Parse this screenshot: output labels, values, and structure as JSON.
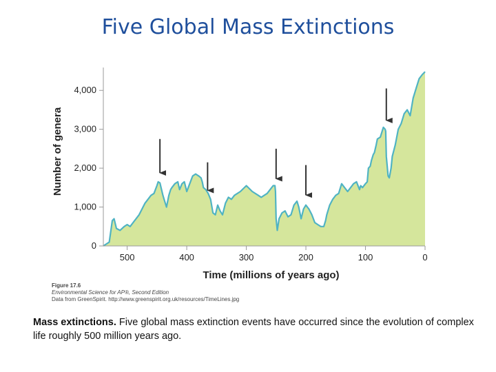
{
  "page_title": "Five Global Mass Extinctions",
  "figure_credit": {
    "number": "Figure 17.6",
    "source": "Environmental Science for AP®, Second Edition",
    "data_from": "Data from GreenSpirit. http://www.greenspirit.org.uk/resources/TimeLines.jpg"
  },
  "caption": {
    "heading": "Mass extinctions.",
    "text": " Five global mass extinction events have occurred since the evolution of complex life roughly 500 million years ago."
  },
  "colors": {
    "title": "#1f4f9c",
    "area_fill": "#d5e69c",
    "line": "#4fb3c3",
    "arrow": "#333333"
  },
  "chart_data": {
    "type": "area",
    "title": "",
    "xlabel": "Time (millions of years ago)",
    "ylabel": "Number of genera",
    "xlim": [
      540,
      0
    ],
    "ylim": [
      0,
      4500
    ],
    "x_reversed": true,
    "grid": false,
    "x_ticks": [
      500,
      400,
      300,
      200,
      100,
      0
    ],
    "x_tick_labels": [
      "500",
      "400",
      "300",
      "200",
      "100",
      "0"
    ],
    "y_ticks": [
      0,
      1000,
      2000,
      3000,
      4000
    ],
    "y_tick_labels": [
      "0",
      "1,000",
      "2,000",
      "3,000",
      "4,000"
    ],
    "x": [
      540,
      530,
      525,
      522,
      518,
      512,
      505,
      500,
      495,
      490,
      480,
      470,
      460,
      455,
      450,
      448,
      445,
      440,
      438,
      434,
      430,
      427,
      425,
      420,
      415,
      412,
      408,
      404,
      400,
      395,
      390,
      385,
      380,
      376,
      374,
      372,
      368,
      364,
      360,
      356,
      352,
      348,
      344,
      340,
      335,
      330,
      325,
      320,
      310,
      300,
      290,
      280,
      275,
      270,
      265,
      260,
      255,
      252,
      251,
      250,
      248,
      245,
      240,
      235,
      230,
      225,
      220,
      215,
      212,
      208,
      204,
      200,
      195,
      190,
      185,
      180,
      175,
      170,
      167,
      165,
      160,
      155,
      150,
      145,
      140,
      130,
      120,
      115,
      110,
      108,
      105,
      100,
      97,
      95,
      92,
      90,
      87,
      85,
      82,
      80,
      75,
      70,
      67,
      66,
      65,
      62,
      60,
      57,
      55,
      50,
      45,
      40,
      35,
      30,
      25,
      20,
      15,
      10,
      5,
      0
    ],
    "values": [
      0,
      100,
      650,
      700,
      450,
      400,
      500,
      550,
      500,
      600,
      800,
      1100,
      1300,
      1350,
      1550,
      1650,
      1620,
      1300,
      1200,
      1000,
      1300,
      1450,
      1500,
      1600,
      1650,
      1450,
      1600,
      1650,
      1400,
      1600,
      1800,
      1850,
      1800,
      1750,
      1650,
      1500,
      1450,
      1350,
      1200,
      850,
      800,
      1050,
      900,
      800,
      1100,
      1250,
      1200,
      1300,
      1400,
      1550,
      1400,
      1300,
      1250,
      1300,
      1350,
      1450,
      1550,
      1550,
      1400,
      700,
      400,
      700,
      850,
      900,
      750,
      800,
      1050,
      1150,
      1000,
      700,
      950,
      1050,
      950,
      800,
      600,
      550,
      500,
      500,
      650,
      800,
      1050,
      1200,
      1300,
      1350,
      1600,
      1400,
      1600,
      1650,
      1450,
      1550,
      1500,
      1600,
      1650,
      2000,
      2050,
      2200,
      2350,
      2400,
      2600,
      2750,
      2800,
      3050,
      3000,
      2950,
      2300,
      1800,
      1750,
      2000,
      2300,
      2600,
      3000,
      3150,
      3400,
      3500,
      3350,
      3800,
      4050,
      4300,
      4400,
      4480
    ],
    "annotations": [
      {
        "type": "arrow",
        "label": "",
        "x": 445,
        "from_y": 2750,
        "to_y": 1700
      },
      {
        "type": "arrow",
        "label": "",
        "x": 365,
        "from_y": 2150,
        "to_y": 1250
      },
      {
        "type": "arrow",
        "label": "",
        "x": 250,
        "from_y": 2500,
        "to_y": 1550
      },
      {
        "type": "arrow",
        "label": "",
        "x": 200,
        "from_y": 2080,
        "to_y": 1130
      },
      {
        "type": "arrow",
        "label": "",
        "x": 65,
        "from_y": 4050,
        "to_y": 3050
      }
    ]
  }
}
